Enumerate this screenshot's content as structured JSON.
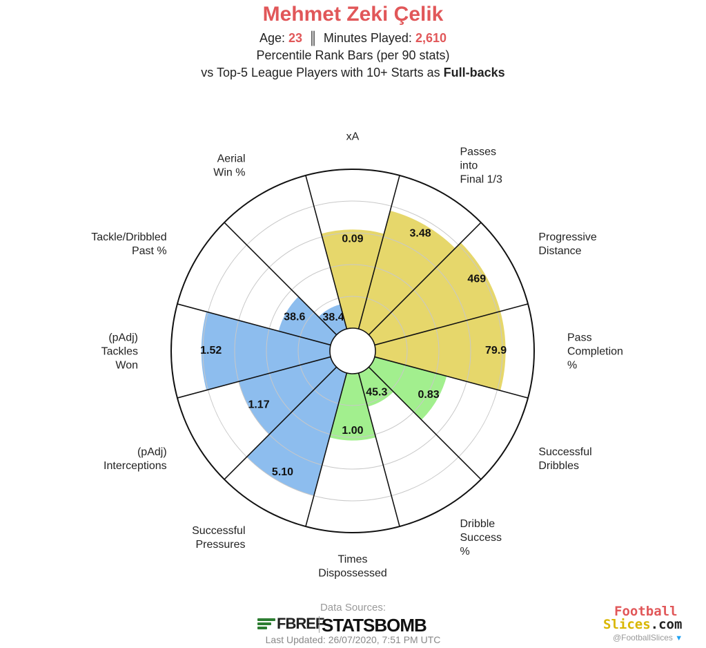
{
  "header": {
    "player_name": "Mehmet Zeki Çelik",
    "age_label": "Age:",
    "age": "23",
    "separator": "║",
    "minutes_label": "Minutes Played:",
    "minutes": "2,610",
    "subtitle_1": "Percentile Rank Bars (per 90 stats)",
    "subtitle_2_prefix": "vs Top-5 League Players with 10+ Starts as",
    "subtitle_2_bold": "Full-backs"
  },
  "chart_data": {
    "type": "polar-bar",
    "r_range": [
      0,
      100
    ],
    "grid": true,
    "grid_rings": [
      20,
      40,
      60,
      80
    ],
    "colors": {
      "attacking": "#e6d76b",
      "possession": "#a2ef8e",
      "defending": "#8dbdee",
      "grid": "#c8c8c8",
      "divider": "#111111"
    },
    "categories": [
      {
        "label": [
          "xA"
        ],
        "value": "0.09",
        "percentile": 62,
        "group": "attacking"
      },
      {
        "label": [
          "Passes",
          "into",
          "Final 1/3"
        ],
        "value": "3.48",
        "percentile": 77,
        "group": "attacking"
      },
      {
        "label": [
          "Progressive",
          "Distance"
        ],
        "value": "469",
        "percentile": 82,
        "group": "attacking"
      },
      {
        "label": [
          "Pass",
          "Completion",
          "%"
        ],
        "value": "79.9",
        "percentile": 82,
        "group": "attacking"
      },
      {
        "label": [
          "Successful",
          "Dribbles"
        ],
        "value": "0.83",
        "percentile": 47,
        "group": "possession"
      },
      {
        "label": [
          "Dribble",
          "Success",
          "%"
        ],
        "value": "45.3",
        "percentile": 22,
        "group": "possession"
      },
      {
        "label": [
          "Times",
          "Dispossessed"
        ],
        "value": "1.00",
        "percentile": 42,
        "group": "possession"
      },
      {
        "label": [
          "Successful",
          "Pressures"
        ],
        "value": "5.10",
        "percentile": 80,
        "group": "defending"
      },
      {
        "label": [
          "(pAdj)",
          "Interceptions"
        ],
        "value": "1.17",
        "percentile": 60,
        "group": "defending"
      },
      {
        "label": [
          "(pAdj)",
          "Tackles",
          "Won"
        ],
        "value": "1.52",
        "percentile": 81,
        "group": "defending"
      },
      {
        "label": [
          "Tackle/Dribbled",
          "Past %"
        ],
        "value": "38.6",
        "percentile": 34,
        "group": "defending"
      },
      {
        "label": [
          "Aerial",
          "Win %"
        ],
        "value": "38.4",
        "percentile": 16,
        "group": "defending"
      }
    ]
  },
  "footer": {
    "sources_label": "Data Sources:",
    "fbref_logo_text": "FBREF",
    "statsbomb_logo_text": "STATSBOMB",
    "last_updated": "Last Updated: 26/07/2020, 7:51 PM UTC",
    "fs_logo_line1": "Football",
    "fs_logo_line2_a": "Slices",
    "fs_logo_line2_b": ".com",
    "fs_handle": "@FootballSlices",
    "icons": [
      "fbref-logo",
      "statsbomb-logo",
      "footballslices-logo",
      "twitter-icon"
    ]
  }
}
